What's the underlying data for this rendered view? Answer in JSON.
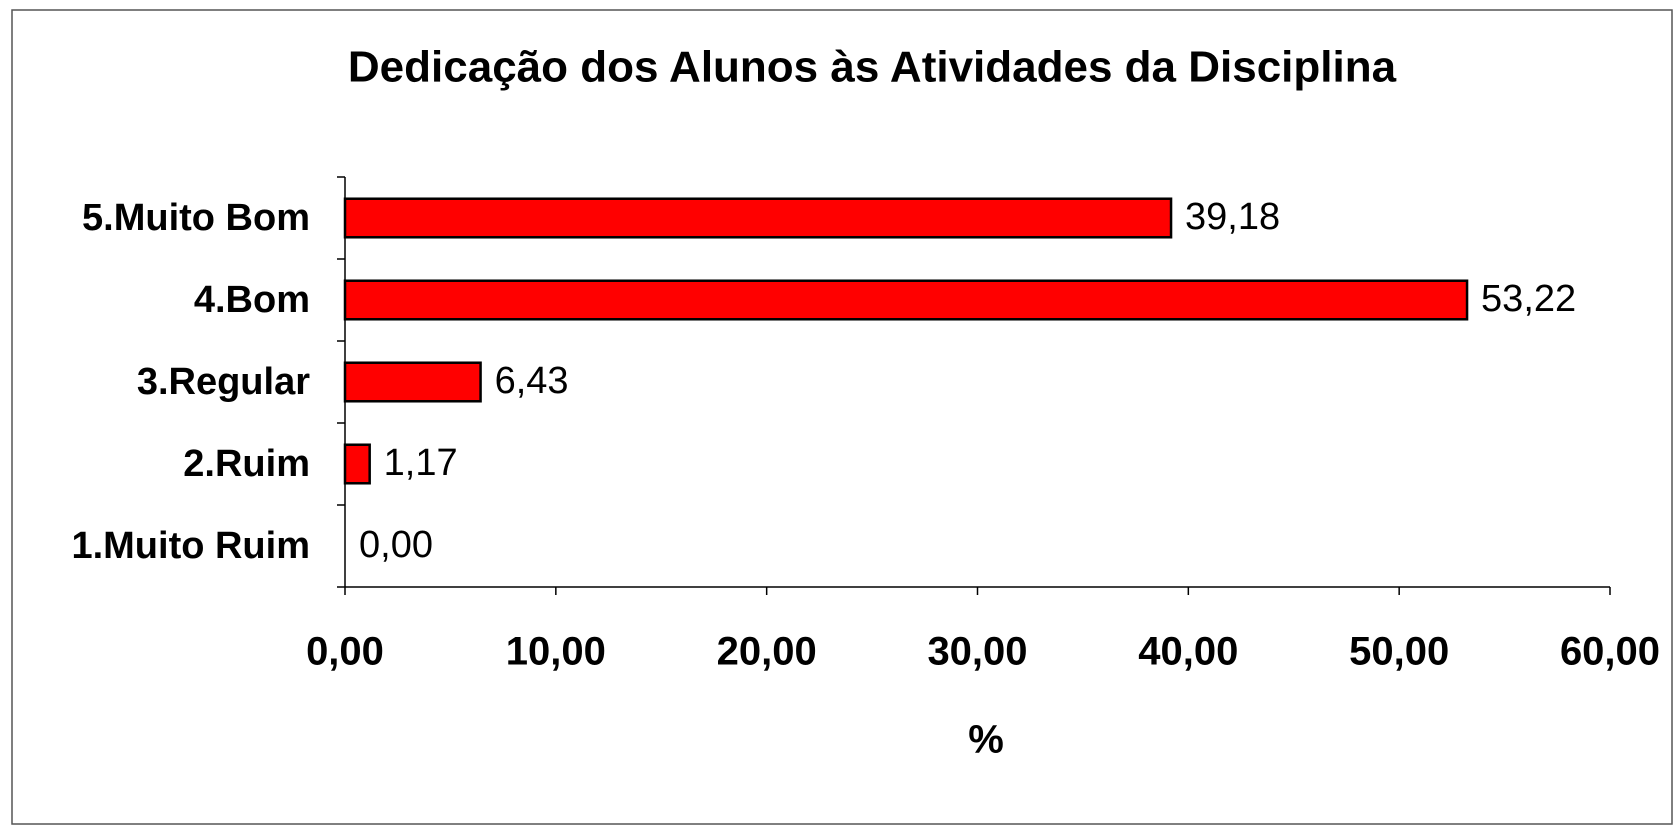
{
  "chart_data": {
    "type": "barh",
    "title": "Dedicação dos Alunos às Atividades da Disciplina",
    "xlabel": "%",
    "categories": [
      "5.Muito Bom",
      "4.Bom",
      "3.Regular",
      "2.Ruim",
      "1.Muito Ruim"
    ],
    "values": [
      39.18,
      53.22,
      6.43,
      1.17,
      0.0
    ],
    "value_labels": [
      "39,18",
      "53,22",
      "6,43",
      "1,17",
      "0,00"
    ],
    "color": "#ff0000",
    "xlim": [
      0,
      60
    ],
    "xticks": [
      {
        "value": 0,
        "label": "0,00"
      },
      {
        "value": 10,
        "label": "10,00"
      },
      {
        "value": 20,
        "label": "20,00"
      },
      {
        "value": 30,
        "label": "30,00"
      },
      {
        "value": 40,
        "label": "40,00"
      },
      {
        "value": 50,
        "label": "50,00"
      },
      {
        "value": 60,
        "label": "60,00"
      }
    ],
    "grid": false
  }
}
